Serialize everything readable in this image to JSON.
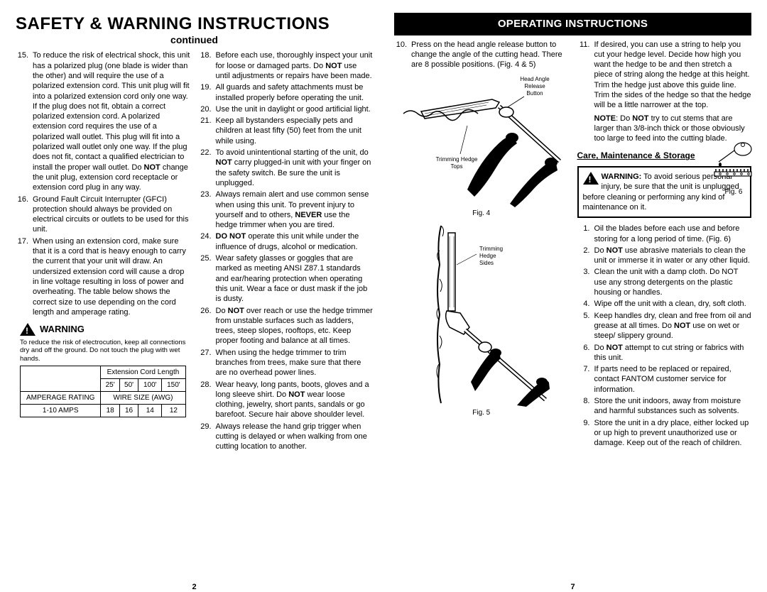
{
  "left": {
    "title": "SAFETY & WARNING INSTRUCTIONS",
    "continued": "continued",
    "col1": {
      "items": [
        {
          "n": "15.",
          "t": "To reduce the risk of electrical shock, this unit has a polarized plug (one blade is wider than the other) and will require the use of a polarized extension cord. This unit plug will fit into a polarized extension cord only one way. If the plug does not fit, obtain a correct polarized extension cord. A polarized extension cord requires the use of a polarized wall outlet. This plug will fit into a polarized wall outlet only one way. If the plug does not fit, contact a qualified electrician to install the proper wall outlet. Do <b>NOT</b> change the unit plug, extension cord receptacle or extension cord plug in any way."
        },
        {
          "n": "16.",
          "t": "Ground Fault Circuit Interrupter (GFCI) protection should always be provided on electrical circuits or outlets to be used for this unit."
        },
        {
          "n": "17.",
          "t": "When using an extension cord, make sure that it is a cord that is heavy enough to carry the current that your unit will draw. An undersized extension cord will cause a drop in line voltage resulting in loss of power and overheating. The table below shows the correct size to use depending on the cord length and amperage rating."
        }
      ],
      "warn_label": "WARNING",
      "warn_text": "To reduce the risk of electrocution, keep all connections dry and off the ground. Do not touch the plug with wet hands.",
      "table": {
        "header": "Extension Cord Length",
        "lengths": [
          "25'",
          "50'",
          "100'",
          "150'"
        ],
        "row1_label": "AMPERAGE RATING",
        "row1_span": "WIRE SIZE (AWG)",
        "row2_label": "1-10 AMPS",
        "row2_vals": [
          "18",
          "16",
          "14",
          "12"
        ]
      }
    },
    "col2": {
      "items": [
        {
          "n": "18.",
          "t": "Before each use, thoroughly inspect your unit for loose or damaged parts. Do <b>NOT</b> use until adjustments or repairs have been made."
        },
        {
          "n": "19.",
          "t": "All guards and safety attachments must be installed properly before operating the unit."
        },
        {
          "n": "20.",
          "t": "Use the unit in daylight or good artificial light."
        },
        {
          "n": "21.",
          "t": "Keep all bystanders especially pets and children at least fifty (50) feet from the unit while using."
        },
        {
          "n": "22.",
          "t": "To avoid unintentional starting of the unit, do <b>NOT</b> carry plugged-in unit with your finger on the safety switch.  Be sure the unit is unplugged."
        },
        {
          "n": "23.",
          "t": "Always remain alert and use common sense when using this unit. To prevent injury to yourself and to others, <b>NEVER</b> use the hedge trimmer when you are tired."
        },
        {
          "n": "24.",
          "t": "<b>DO NOT</b> operate this unit while under the influence of drugs, alcohol or medication."
        },
        {
          "n": "25.",
          "t": "Wear safety glasses or goggles that are marked as meeting ANSI Z87.1 standards and ear/hearing protection when operating this unit. Wear a face or dust mask if the job is dusty."
        },
        {
          "n": "26.",
          "t": "Do <b>NOT</b> over reach or use the hedge trimmer from unstable surfaces such as ladders, trees, steep slopes, rooftops, etc. Keep proper footing and balance at all times."
        },
        {
          "n": "27.",
          "t": "When using the hedge trimmer to trim branches from trees, make sure that there are no overhead power lines."
        },
        {
          "n": "28.",
          "t": "Wear heavy, long pants, boots, gloves and a long sleeve shirt. Do <b>NOT</b> wear loose clothing, jewelry, short pants, sandals or go barefoot. Secure hair above shoulder level."
        },
        {
          "n": "29.",
          "t": "Always release the hand grip trigger when cutting is delayed or when walking from one cutting location to another."
        }
      ]
    },
    "page_num": "2"
  },
  "right": {
    "title": "OPERATING INSTRUCTIONS",
    "col1": {
      "items": [
        {
          "n": "10.",
          "t": "Press on the head angle release button to change the angle of the cutting head. There are 8 possible positions. (Fig. 4 & 5)"
        }
      ],
      "fig4": {
        "label": "Fig. 4",
        "head_angle_label": "Head Angle Release Button",
        "trim_tops_label": "Trimming Hedge Tops"
      },
      "fig5": {
        "label": "Fig. 5",
        "trim_sides_label": "Trimming Hedge Sides"
      }
    },
    "col2": {
      "items": [
        {
          "n": "11.",
          "t": "If desired, you can use a string to help you cut your hedge level. Decide how high you want the hedge to be and then stretch a piece of string along the hedge at this height. Trim the hedge just above this guide line. Trim the sides of the hedge so that the hedge will be a little narrower at the top."
        }
      ],
      "note": "<b>NOTE</b>: Do <b>NOT</b> try to cut stems that are larger than 3/8-inch thick or those obviously too large to feed into the cutting blade.",
      "care_header": "Care, Maintenance & Storage",
      "warn_box": "<b>WARNING:</b> To avoid serious personal injury, be sure that the unit is unplugged before cleaning or performing any kind of maintenance on it.",
      "care_items": [
        {
          "n": "1.",
          "t": "Oil the blades before each use and before storing for a long period of time.  (Fig. 6)"
        },
        {
          "n": "2.",
          "t": "Do <b>NOT</b> use abrasive materials to clean the unit or immerse it in water or any other liquid."
        },
        {
          "n": "3.",
          "t": "Clean the unit with a damp cloth. Do NOT use any strong detergents on the plastic housing or handles."
        },
        {
          "n": "4.",
          "t": "Wipe off the unit with a clean, dry, soft cloth."
        },
        {
          "n": "5.",
          "t": "Keep handles dry, clean and free from oil and grease at all times. Do <b>NOT</b> use on wet or steep/ slippery ground."
        },
        {
          "n": "6.",
          "t": "Do <b>NOT</b> attempt to cut string or fabrics with this unit."
        },
        {
          "n": "7.",
          "t": "If parts need to be replaced or repaired, contact FANTOM customer service for information."
        },
        {
          "n": "8.",
          "t": "Store the unit indoors, away from moisture and harmful substances such as solvents."
        },
        {
          "n": "9.",
          "t": "Store the unit in a dry place, either locked up or up high to prevent unauthorized use or damage. Keep out of the reach of children."
        }
      ],
      "fig6_label": "Fig. 6"
    },
    "page_num": "7"
  }
}
